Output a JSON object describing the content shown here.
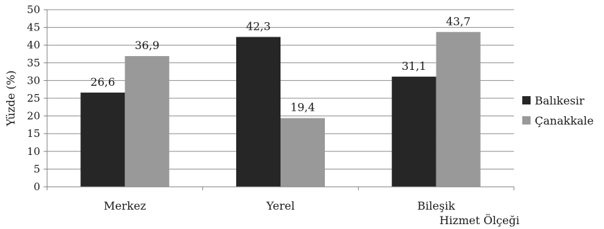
{
  "chart_data": {
    "type": "bar",
    "categories": [
      "Merkez",
      "Yerel",
      "Bileşik"
    ],
    "series": [
      {
        "name": "Balıkesir",
        "values": [
          26.6,
          42.3,
          31.1
        ],
        "labels": [
          "26,6",
          "42,3",
          "31,1"
        ],
        "color": "#262626"
      },
      {
        "name": "Çanakkale",
        "values": [
          36.9,
          19.4,
          43.7
        ],
        "labels": [
          "36,9",
          "19,4",
          "43,7"
        ],
        "color": "#999999"
      }
    ],
    "ylabel": "Yüzde (%)",
    "xlabel": "Hizmet Ölçeği",
    "ylim": [
      0,
      50
    ],
    "yticks": [
      0,
      5,
      10,
      15,
      20,
      25,
      30,
      35,
      40,
      45,
      50
    ],
    "grid": true,
    "legend": "right"
  }
}
